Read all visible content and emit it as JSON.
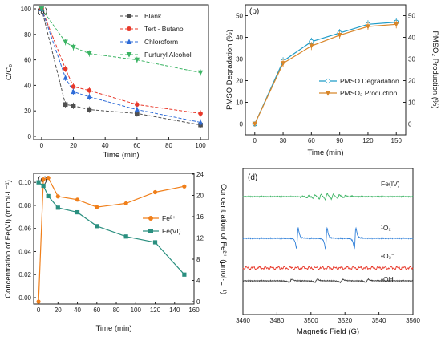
{
  "chart_data": [
    {
      "panel": "(a)",
      "type": "line",
      "xlabel": "Time (min)",
      "ylabel": "C/C₀",
      "xlim": [
        -5,
        105
      ],
      "ylim": [
        0,
        100
      ],
      "xticks": [
        "0",
        "20",
        "40",
        "60",
        "80",
        "100"
      ],
      "yticks": [
        "0",
        "20",
        "40",
        "60",
        "80",
        "100"
      ],
      "legend_position": "top-right",
      "x": [
        0,
        15,
        20,
        30,
        60,
        100
      ],
      "series": [
        {
          "name": "Blank",
          "color": "#505050",
          "marker": "square",
          "values": [
            100,
            25,
            24,
            21,
            18,
            9
          ]
        },
        {
          "name": "Tert - Butanol",
          "color": "#e8382a",
          "marker": "circle",
          "values": [
            100,
            53,
            39,
            36,
            25,
            18
          ]
        },
        {
          "name": "Chloroform",
          "color": "#2f6cd8",
          "marker": "triangle-up",
          "values": [
            100,
            46,
            35,
            31,
            21,
            11
          ]
        },
        {
          "name": "Furfuryl Alcohol",
          "color": "#3cb464",
          "marker": "triangle-down",
          "values": [
            100,
            74,
            70,
            65,
            60,
            50
          ]
        }
      ]
    },
    {
      "panel": "(b)",
      "type": "line",
      "xlabel": "Time (min)",
      "ylabel_left": "PMSO Degradation (%)",
      "ylabel_right": "PMSO₂ Production (%)",
      "xlim": [
        -10,
        160
      ],
      "ylim": [
        -5,
        55
      ],
      "xticks": [
        "0",
        "30",
        "60",
        "90",
        "120",
        "150"
      ],
      "yticks": [
        "0",
        "10",
        "20",
        "30",
        "40",
        "50"
      ],
      "legend_position": "bottom-right",
      "x": [
        0,
        30,
        60,
        90,
        120,
        150
      ],
      "series": [
        {
          "name": "PMSO Degradation",
          "color": "#1f9cc8",
          "marker": "circle",
          "values": [
            0,
            29,
            38,
            42,
            46,
            47
          ]
        },
        {
          "name": "PMSO₂ Production",
          "color": "#d8862a",
          "marker": "triangle-down",
          "values": [
            0,
            28,
            36,
            41,
            45,
            46
          ]
        }
      ]
    },
    {
      "panel": "(c)",
      "type": "line",
      "xlabel": "Time (min)",
      "ylabel_left": "Concentration of Fe(VI) (mmol·L⁻¹)",
      "ylabel_right": "Concentration of Fe²⁺ (μmol·L⁻¹)",
      "xlim": [
        -5,
        160
      ],
      "ylim_left": [
        0.0,
        0.105
      ],
      "ylim_right": [
        0,
        24
      ],
      "xticks": [
        "0",
        "20",
        "40",
        "60",
        "80",
        "100",
        "120",
        "140",
        "160"
      ],
      "yticks_left": [
        "0.00",
        "0.02",
        "0.04",
        "0.06",
        "0.08",
        "0.10"
      ],
      "yticks_right": [
        "0",
        "4",
        "8",
        "12",
        "16",
        "20",
        "24"
      ],
      "legend_position": "right",
      "series": [
        {
          "name": "Fe²⁺",
          "color": "#f07f1a",
          "marker": "circle",
          "axis": "right",
          "x": [
            0,
            5,
            10,
            20,
            40,
            60,
            90,
            120,
            150
          ],
          "values": [
            0,
            23,
            23.3,
            19.8,
            19.2,
            17.8,
            18.5,
            20.6,
            21.7
          ]
        },
        {
          "name": "Fe(VI)",
          "color": "#2a8f7f",
          "marker": "square",
          "axis": "left",
          "x": [
            0,
            5,
            10,
            20,
            40,
            60,
            90,
            120,
            150
          ],
          "values": [
            0.1,
            0.097,
            0.088,
            0.078,
            0.074,
            0.062,
            0.053,
            0.048,
            0.02
          ]
        }
      ]
    },
    {
      "panel": "(d)",
      "type": "line",
      "xlabel": "Magnetic Field (G)",
      "xlim": [
        3460,
        3560
      ],
      "xticks": [
        "3460",
        "3480",
        "3500",
        "3520",
        "3540",
        "3560"
      ],
      "traces": [
        {
          "name": "Fe(IV)",
          "color": "#3cb464"
        },
        {
          "name": "¹O₂",
          "color": "#2f7fd8"
        },
        {
          "name": "•O₂⁻",
          "color": "#e8382a"
        },
        {
          "name": "•OH",
          "color": "#404040"
        }
      ]
    }
  ]
}
